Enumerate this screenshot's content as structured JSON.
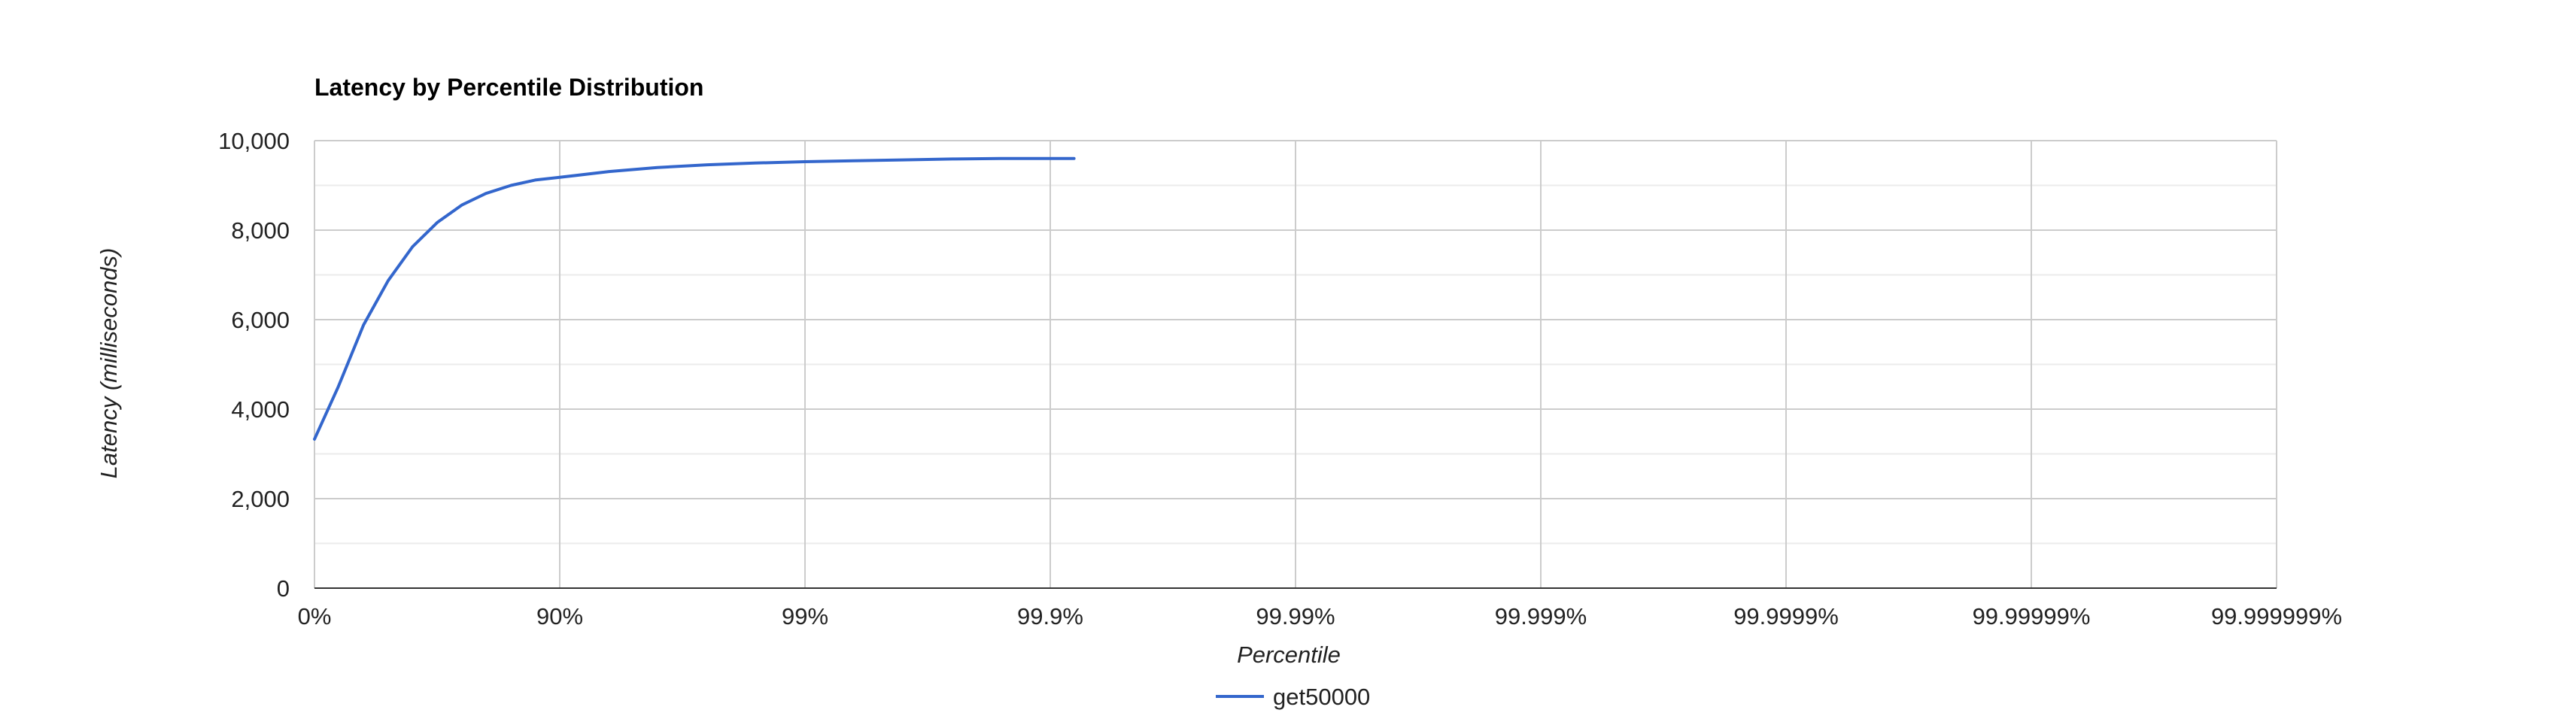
{
  "chart_data": {
    "type": "line",
    "title": "Latency by Percentile Distribution",
    "xlabel": "Percentile",
    "ylabel": "Latency (milliseconds)",
    "x_scale": "log-inverse-percentile",
    "x_ticks": [
      "0%",
      "90%",
      "99%",
      "99.9%",
      "99.99%",
      "99.999%",
      "99.9999%",
      "99.99999%",
      "99.999999%"
    ],
    "xlim": [
      0,
      99.999999
    ],
    "y_ticks": [
      "0",
      "2,000",
      "4,000",
      "6,000",
      "8,000",
      "10,000"
    ],
    "ylim": [
      0,
      10000
    ],
    "grid": true,
    "legend_position": "bottom",
    "series": [
      {
        "name": "get50000",
        "color": "#3366cc",
        "x": [
          0,
          20,
          36.9,
          49.9,
          60.2,
          68.4,
          74.9,
          80.0,
          84.2,
          87.4,
          90.0,
          93.7,
          96.0,
          97.5,
          98.4,
          99.0,
          99.37,
          99.6,
          99.75,
          99.84,
          99.9,
          99.92
        ],
        "y": [
          3330,
          4500,
          5880,
          6870,
          7630,
          8170,
          8560,
          8820,
          9000,
          9120,
          9180,
          9310,
          9400,
          9460,
          9500,
          9530,
          9550,
          9570,
          9590,
          9600,
          9600,
          9600
        ]
      }
    ]
  }
}
